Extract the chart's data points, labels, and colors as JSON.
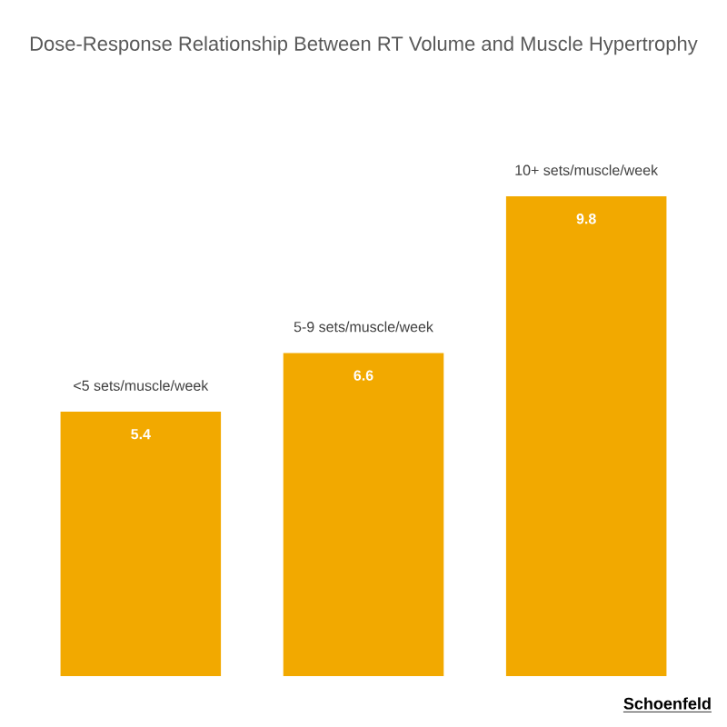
{
  "chart_data": {
    "type": "bar",
    "title": "Dose-Response Relationship Between RT Volume and Muscle Hypertrophy",
    "categories": [
      "<5 sets/muscle/week",
      "5-9 sets/muscle/week",
      "10+ sets/muscle/week"
    ],
    "values": [
      5.4,
      6.6,
      9.8
    ],
    "color": "#f2a900",
    "data_labels": true,
    "annotations": [
      "Schoenfeld"
    ]
  }
}
